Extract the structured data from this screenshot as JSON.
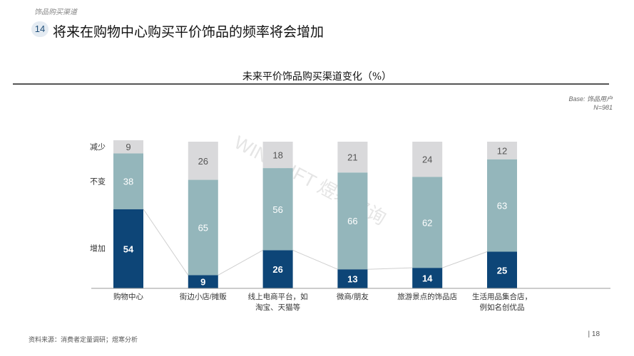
{
  "header": {
    "section": "饰品购买渠道",
    "page_badge": "14",
    "title": "将来在购物中心购买平价饰品的频率将会增加"
  },
  "base_note": {
    "line1": "Base: 饰品用户",
    "line2": "N=981"
  },
  "watermark": "WINSHIFT 煜寒咨询",
  "footer": {
    "source": "资料来源：消费者定量调研；煜寒分析",
    "page_number": "| 18"
  },
  "chart_data": {
    "type": "bar",
    "stacked": true,
    "title": "未来平价饰品购买渠道变化（%）",
    "categories": [
      "购物中心",
      "街边小店/摊贩",
      "线上电商平台，如\n淘宝、天猫等",
      "微商/朋友",
      "旅游景点的饰品店",
      "生活用品集合店，\n例如名创优品"
    ],
    "series": [
      {
        "name": "增加",
        "color": "#0d4577",
        "label_color": "#ffffff",
        "values": [
          54,
          9,
          26,
          13,
          14,
          25
        ]
      },
      {
        "name": "不变",
        "color": "#94b6bb",
        "label_color": "#ffffff",
        "values": [
          38,
          65,
          56,
          66,
          62,
          63
        ]
      },
      {
        "name": "减少",
        "color": "#d9d9db",
        "label_color": "#555555",
        "values": [
          9,
          26,
          18,
          21,
          24,
          12
        ]
      }
    ],
    "ylim": [
      0,
      100
    ],
    "connector_lines": true,
    "legend_placement": "left"
  }
}
